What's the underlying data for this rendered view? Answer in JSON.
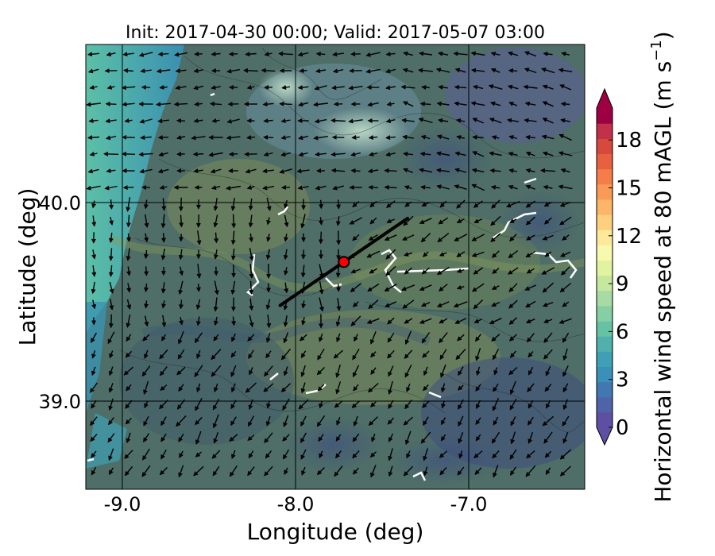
{
  "chart_data": {
    "type": "heatmap",
    "title": "Init: 2017-04-30 00:00; Valid: 2017-05-07 03:00",
    "xlabel": "Longitude (deg)",
    "ylabel": "Latitude (deg)",
    "xlim": [
      -9.25,
      -6.35
    ],
    "ylim": [
      38.55,
      40.8
    ],
    "x_ticks": [
      {
        "value": -9.0,
        "label": "-9.0"
      },
      {
        "value": -8.0,
        "label": "-8.0"
      },
      {
        "value": -7.0,
        "label": "-7.0"
      }
    ],
    "y_ticks": [
      {
        "value": 40.0,
        "label": "40.0"
      },
      {
        "value": 39.0,
        "label": "39.0"
      }
    ],
    "grid": true,
    "colorbar": {
      "label": "Horizontal wind speed at 80 mAGL (m s",
      "label_superscript": "−1",
      "label_close": ")",
      "vmin": 0,
      "vmax": 20,
      "extend": "both",
      "ticks": [
        {
          "value": 0,
          "label": "0"
        },
        {
          "value": 3,
          "label": "3"
        },
        {
          "value": 6,
          "label": "6"
        },
        {
          "value": 9,
          "label": "9"
        },
        {
          "value": 12,
          "label": "12"
        },
        {
          "value": 15,
          "label": "15"
        },
        {
          "value": 18,
          "label": "18"
        }
      ],
      "colors": [
        "#5e4fa2",
        "#4f63a9",
        "#4178b1",
        "#3990b9",
        "#3f9fb5",
        "#4fb0ad",
        "#66c2a5",
        "#86cfa5",
        "#a6dba4",
        "#c5e79e",
        "#e1f3a0",
        "#f7f9ae",
        "#fee99a",
        "#fdd080",
        "#fdb567",
        "#f99a57",
        "#f57d4a",
        "#e7603f",
        "#d7483d",
        "#c2304a",
        "#9e0142"
      ],
      "under_color": "#5e4fa2",
      "over_color": "#9e0142"
    },
    "marker": {
      "lon": -7.75,
      "lat": 39.7,
      "color": "#ff0000",
      "edge": "#000000"
    },
    "transect": {
      "lon": [
        -8.12,
        -7.38
      ],
      "lat": [
        39.48,
        39.92
      ],
      "color": "#000000"
    }
  }
}
